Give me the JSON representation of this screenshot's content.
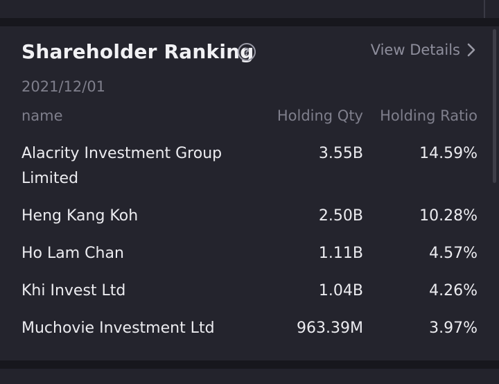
{
  "panel": {
    "title": "Shareholder Ranking",
    "help_icon": "question-circle-icon",
    "view_details_label": "View Details",
    "view_details_icon": "chevron-right-icon",
    "date": "2021/12/01"
  },
  "table": {
    "headers": {
      "name": "name",
      "qty": "Holding Qty",
      "ratio": "Holding Ratio"
    },
    "rows": [
      {
        "name": "Alacrity Investment Group Limited",
        "qty": "3.55B",
        "ratio": "14.59%"
      },
      {
        "name": "Heng Kang Koh",
        "qty": "2.50B",
        "ratio": "10.28%"
      },
      {
        "name": "Ho Lam Chan",
        "qty": "1.11B",
        "ratio": "4.57%"
      },
      {
        "name": "Khi Invest Ltd",
        "qty": "1.04B",
        "ratio": "4.26%"
      },
      {
        "name": "Muchovie Investment Ltd",
        "qty": "963.39M",
        "ratio": "3.97%"
      }
    ]
  },
  "colors": {
    "background": "#17171d",
    "card": "#24242d",
    "text_primary": "#ececf0",
    "text_secondary": "#7f7f8c"
  }
}
